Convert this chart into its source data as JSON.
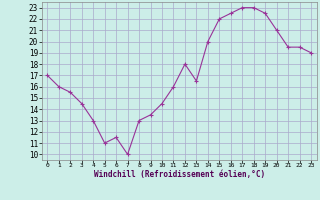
{
  "x": [
    0,
    1,
    2,
    3,
    4,
    5,
    6,
    7,
    8,
    9,
    10,
    11,
    12,
    13,
    14,
    15,
    16,
    17,
    18,
    19,
    20,
    21,
    22,
    23
  ],
  "y": [
    17,
    16,
    15.5,
    14.5,
    13,
    11,
    11.5,
    10,
    13,
    13.5,
    14.5,
    16,
    18,
    16.5,
    20,
    22,
    22.5,
    23,
    23,
    22.5,
    21,
    19.5,
    19.5,
    19
  ],
  "line_color": "#993399",
  "marker": "P",
  "marker_size": 2.5,
  "bg_color": "#cceee8",
  "grid_color": "#aaaacc",
  "xlabel": "Windchill (Refroidissement éolien,°C)",
  "xlim": [
    -0.5,
    23.5
  ],
  "ylim": [
    9.5,
    23.5
  ],
  "yticks": [
    10,
    11,
    12,
    13,
    14,
    15,
    16,
    17,
    18,
    19,
    20,
    21,
    22,
    23
  ],
  "xticks": [
    0,
    1,
    2,
    3,
    4,
    5,
    6,
    7,
    8,
    9,
    10,
    11,
    12,
    13,
    14,
    15,
    16,
    17,
    18,
    19,
    20,
    21,
    22,
    23
  ]
}
